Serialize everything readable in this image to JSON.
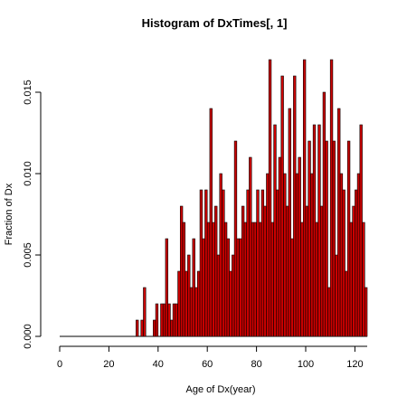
{
  "chart_data": {
    "type": "histogram",
    "title": "Histogram of DxTimes[, 1]",
    "xlabel": "Age of Dx(year)",
    "ylabel": "Fraction of Dx",
    "xlim": [
      0,
      125
    ],
    "ylim": [
      0,
      0.017
    ],
    "bin_width": 1,
    "x_ticks": [
      "0",
      "20",
      "40",
      "60",
      "80",
      "100",
      "120"
    ],
    "y_ticks": [
      "0.000",
      "0.005",
      "0.010",
      "0.015"
    ],
    "bins_start": [
      30,
      31,
      32,
      33,
      34,
      35,
      36,
      37,
      38,
      39,
      40,
      41,
      42,
      43,
      44,
      45,
      46,
      47,
      48,
      49,
      50,
      51,
      52,
      53,
      54,
      55,
      56,
      57,
      58,
      59,
      60,
      61,
      62,
      63,
      64,
      65,
      66,
      67,
      68,
      69,
      70,
      71,
      72,
      73,
      74,
      75,
      76,
      77,
      78,
      79,
      80,
      81,
      82,
      83,
      84,
      85,
      86,
      87,
      88,
      89,
      90,
      91,
      92,
      93,
      94,
      95,
      96,
      97,
      98,
      99,
      100,
      101,
      102,
      103,
      104,
      105,
      106,
      107,
      108,
      109,
      110,
      111,
      112,
      113,
      114,
      115,
      116,
      117,
      118,
      119,
      120,
      121,
      122,
      123,
      124
    ],
    "values": [
      0.0,
      0.001,
      0.0,
      0.001,
      0.003,
      0.0,
      0.0,
      0.0,
      0.001,
      0.002,
      0.0,
      0.002,
      0.002,
      0.006,
      0.002,
      0.001,
      0.002,
      0.002,
      0.004,
      0.008,
      0.007,
      0.004,
      0.005,
      0.003,
      0.006,
      0.003,
      0.004,
      0.009,
      0.006,
      0.009,
      0.007,
      0.014,
      0.007,
      0.008,
      0.005,
      0.01,
      0.009,
      0.007,
      0.006,
      0.004,
      0.005,
      0.012,
      0.006,
      0.006,
      0.008,
      0.007,
      0.009,
      0.011,
      0.007,
      0.007,
      0.009,
      0.007,
      0.009,
      0.008,
      0.01,
      0.017,
      0.007,
      0.013,
      0.009,
      0.011,
      0.016,
      0.01,
      0.008,
      0.014,
      0.006,
      0.016,
      0.01,
      0.011,
      0.007,
      0.017,
      0.008,
      0.012,
      0.01,
      0.013,
      0.007,
      0.013,
      0.008,
      0.015,
      0.012,
      0.003,
      0.017,
      0.012,
      0.005,
      0.014,
      0.01,
      0.009,
      0.004,
      0.012,
      0.007,
      0.008,
      0.009,
      0.01,
      0.013,
      0.007,
      0.003
    ]
  }
}
